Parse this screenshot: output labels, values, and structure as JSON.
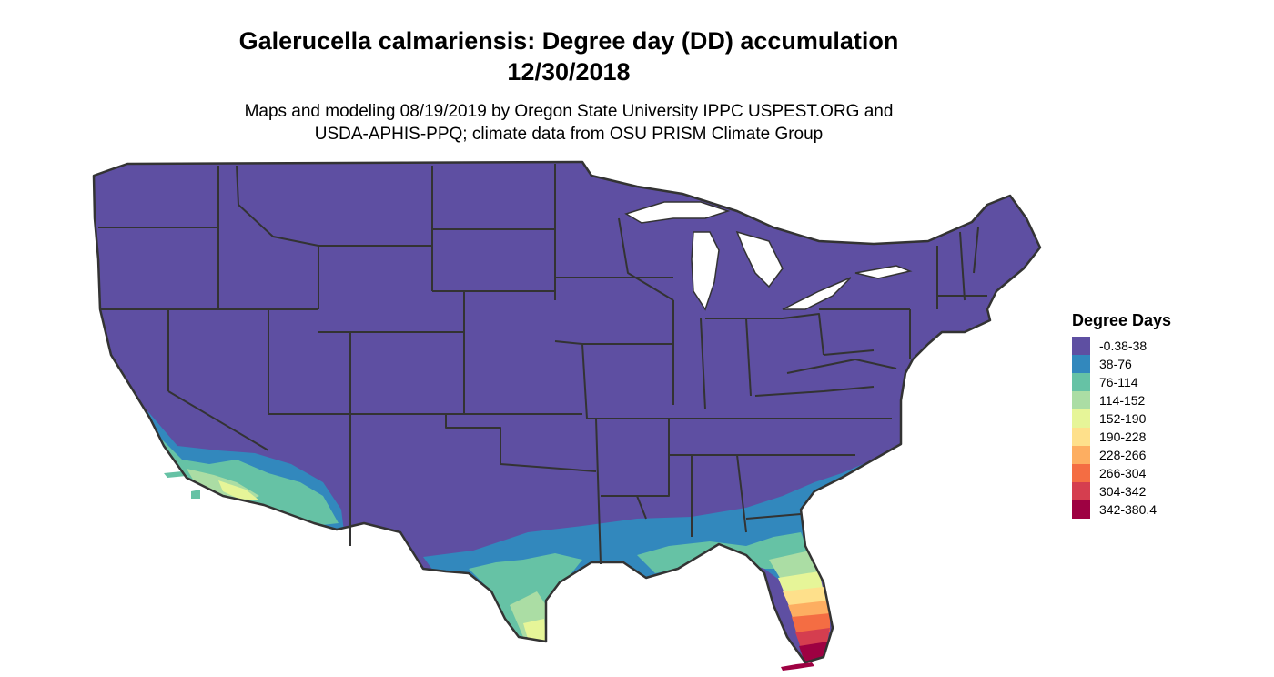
{
  "title_line1": "Galerucella calmariensis: Degree day (DD) accumulation",
  "title_line2": "12/30/2018",
  "subtitle_line1": "Maps and modeling 08/19/2019 by Oregon State University IPPC USPEST.ORG and",
  "subtitle_line2": "USDA-APHIS-PPQ; climate data from OSU PRISM Climate Group",
  "legend": {
    "title": "Degree Days",
    "items": [
      {
        "label": "-0.38-38",
        "color": "#5e4fa2"
      },
      {
        "label": "38-76",
        "color": "#3288bd"
      },
      {
        "label": "76-114",
        "color": "#66c2a5"
      },
      {
        "label": "114-152",
        "color": "#abdda4"
      },
      {
        "label": "152-190",
        "color": "#e6f598"
      },
      {
        "label": "190-228",
        "color": "#fee08b"
      },
      {
        "label": "228-266",
        "color": "#fdae61"
      },
      {
        "label": "266-304",
        "color": "#f46d43"
      },
      {
        "label": "304-342",
        "color": "#d53e4f"
      },
      {
        "label": "342-380.4",
        "color": "#9e0142"
      }
    ]
  },
  "colors": {
    "border": "#333333",
    "lake": "#ffffff"
  }
}
